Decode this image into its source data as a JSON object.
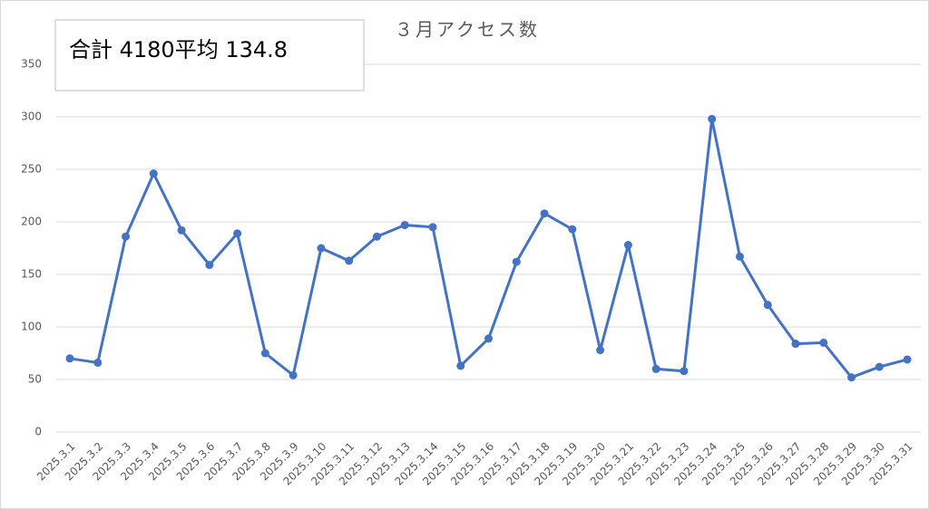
{
  "chart_data": {
    "type": "line",
    "title": "３月アクセス数",
    "annotation": "合計 4180平均 134.8",
    "categories": [
      "2025.3.1",
      "2025.3.2",
      "2025.3.3",
      "2025.3.4",
      "2025.3.5",
      "2025.3.6",
      "2025.3.7",
      "2025.3.8",
      "2025.3.9",
      "2025.3.10",
      "2025.3.11",
      "2025.3.12",
      "2025.3.13",
      "2025.3.14",
      "2025.3.15",
      "2025.3.16",
      "2025.3.17",
      "2025.3.18",
      "2025.3.19",
      "2025.3.20",
      "2025.3.21",
      "2025.3.22",
      "2025.3.23",
      "2025.3.24",
      "2025.3.25",
      "2025.3.26",
      "2025.3.27",
      "2025.3.28",
      "2025.3.29",
      "2025.3.30",
      "2025.3.31"
    ],
    "values": [
      70,
      66,
      186,
      246,
      192,
      159,
      189,
      75,
      54,
      175,
      163,
      186,
      197,
      195,
      63,
      89,
      162,
      208,
      193,
      78,
      178,
      60,
      58,
      298,
      167,
      121,
      84,
      85,
      52,
      62,
      69
    ],
    "color": "#4472c4",
    "ylim": [
      0,
      350
    ],
    "yticks": [
      0,
      50,
      100,
      150,
      200,
      250,
      300,
      350
    ],
    "grid": true
  }
}
